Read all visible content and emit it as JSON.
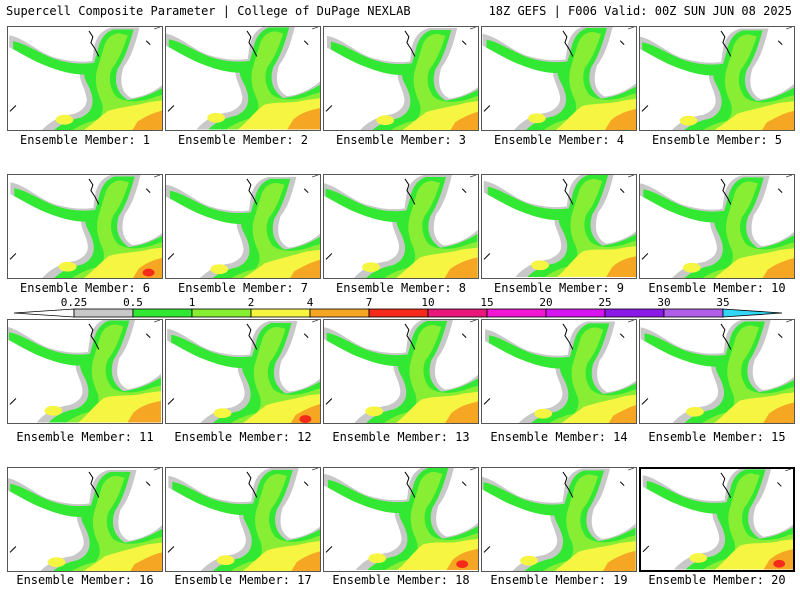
{
  "header": {
    "left": "Supercell Composite Parameter | College of DuPage NEXLAB",
    "right": "18Z GEFS | F006 Valid: 00Z SUN JUN 08 2025"
  },
  "colorbar": {
    "thresholds": [
      "0.25",
      "0.5",
      "1",
      "2",
      "4",
      "7",
      "10",
      "15",
      "20",
      "25",
      "30",
      "35"
    ],
    "colors": [
      "#c8c8c8",
      "#33e833",
      "#88ee33",
      "#f5f542",
      "#f5a623",
      "#f52a1a",
      "#e8187a",
      "#f016d2",
      "#d614f0",
      "#8a1ae6",
      "#b05ee8",
      "#33d6f5"
    ]
  },
  "members": [
    {
      "label": "Ensemble Member: 1",
      "variant": 1
    },
    {
      "label": "Ensemble Member: 2",
      "variant": 2
    },
    {
      "label": "Ensemble Member: 3",
      "variant": 3
    },
    {
      "label": "Ensemble Member: 4",
      "variant": 4
    },
    {
      "label": "Ensemble Member: 5",
      "variant": 5
    },
    {
      "label": "Ensemble Member: 6",
      "variant": 6
    },
    {
      "label": "Ensemble Member: 7",
      "variant": 7
    },
    {
      "label": "Ensemble Member: 8",
      "variant": 8
    },
    {
      "label": "Ensemble Member: 9",
      "variant": 9
    },
    {
      "label": "Ensemble Member: 10",
      "variant": 10
    },
    {
      "label": "Ensemble Member: 11",
      "variant": 11
    },
    {
      "label": "Ensemble Member: 12",
      "variant": 12
    },
    {
      "label": "Ensemble Member: 13",
      "variant": 13
    },
    {
      "label": "Ensemble Member: 14",
      "variant": 14
    },
    {
      "label": "Ensemble Member: 15",
      "variant": 15
    },
    {
      "label": "Ensemble Member: 16",
      "variant": 16
    },
    {
      "label": "Ensemble Member: 17",
      "variant": 17
    },
    {
      "label": "Ensemble Member: 18",
      "variant": 18
    },
    {
      "label": "Ensemble Member: 19",
      "variant": 19
    },
    {
      "label": "Ensemble Member: 20",
      "variant": 20,
      "selected": true
    }
  ]
}
